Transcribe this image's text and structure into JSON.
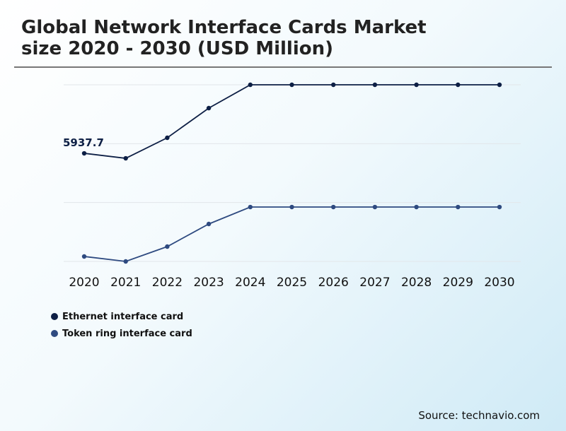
{
  "chart_data": {
    "type": "line",
    "title": "Global Network Interface Cards Market size 2020 - 2030 (USD Million)",
    "title_lines": [
      "Global Network Interface Cards Market",
      "size 2020 - 2030 (USD Million)"
    ],
    "xlabel": "",
    "ylabel": "",
    "categories": [
      "2020",
      "2021",
      "2022",
      "2023",
      "2024",
      "2025",
      "2026",
      "2027",
      "2028",
      "2029",
      "2030"
    ],
    "ylim": [
      0,
      9703
    ],
    "grid": true,
    "gridlines": [
      0,
      3234,
      6468,
      9703
    ],
    "legend_position": "bottom-left",
    "series": [
      {
        "name": "Ethernet interface card",
        "color": "#0d1f45",
        "values": [
          5937.7,
          5666,
          6792,
          8422,
          9703,
          9703,
          9703,
          9703,
          9703,
          9703,
          9703
        ]
      },
      {
        "name": "Token ring interface card",
        "color": "#2e4a80",
        "values": [
          272,
          0,
          815,
          2057,
          2988,
          2988,
          2988,
          2988,
          2988,
          2988,
          2988
        ]
      }
    ],
    "annotations": [
      {
        "series": 0,
        "index": 0,
        "text": "5937.7"
      }
    ]
  },
  "source": "Source: technavio.com"
}
